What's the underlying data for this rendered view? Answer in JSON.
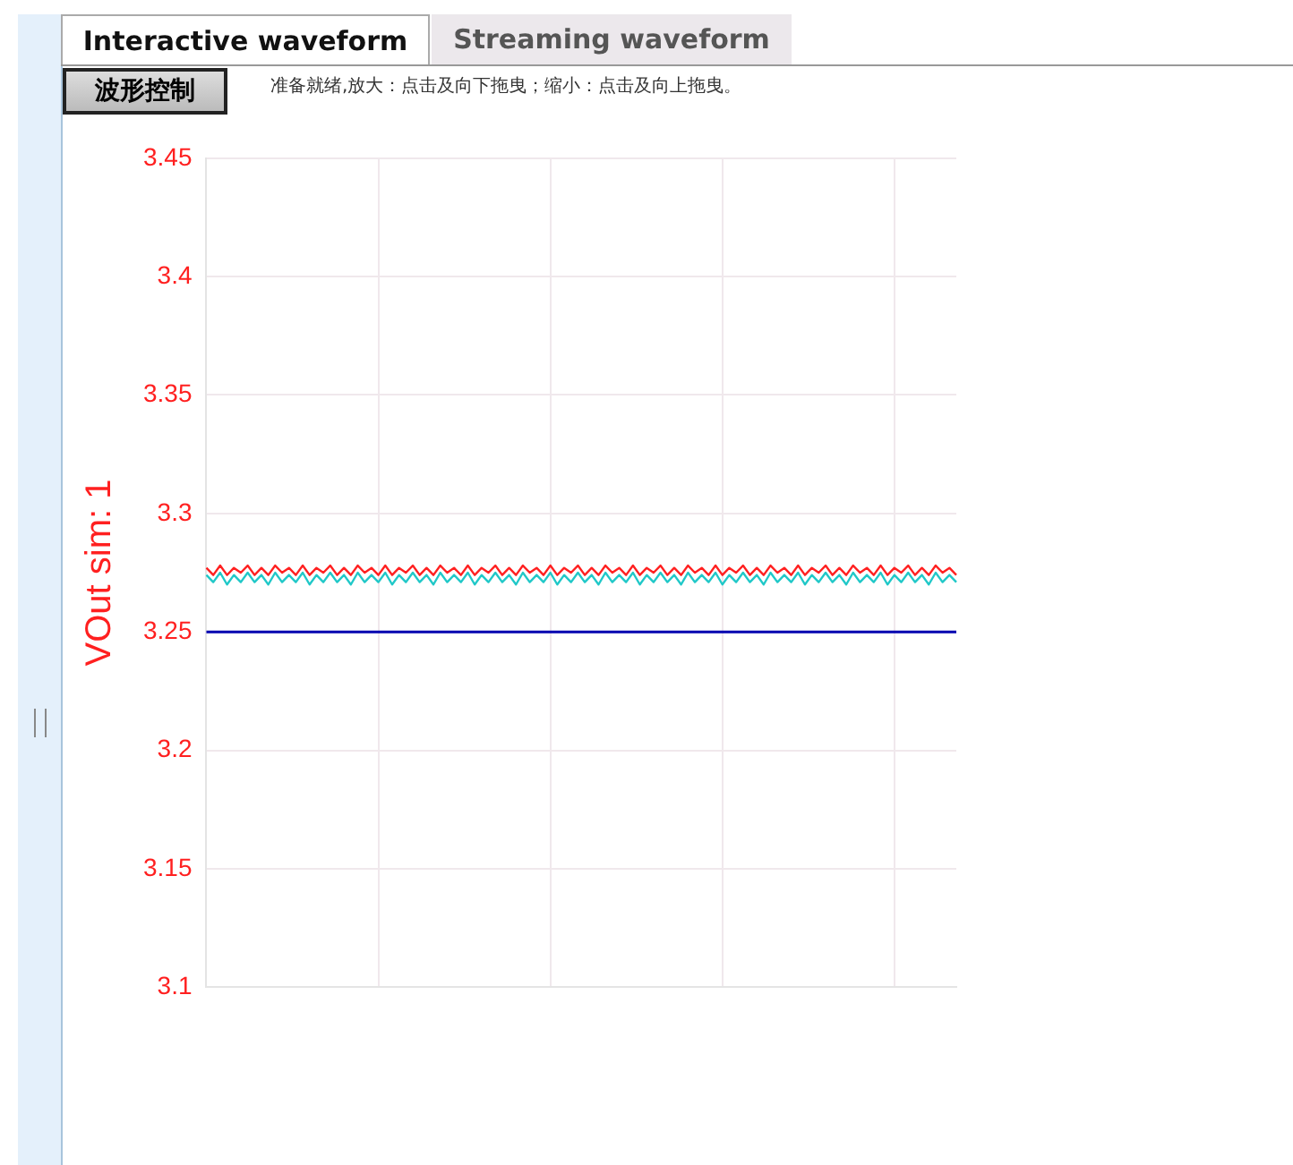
{
  "chart_data": {
    "type": "line",
    "annotations": [
      "Interactive waveform",
      "Streaming waveform",
      "波形控制",
      "准备就绪,放大：点击及向下拖曳；缩小：点击及向上拖曳。"
    ],
    "ylabel": "VOut sim: 1",
    "categories": [
      null,
      null,
      null,
      null,
      null,
      null,
      null,
      null,
      null,
      null,
      null,
      null,
      null,
      null,
      null,
      null,
      null,
      null,
      null,
      null,
      null,
      null,
      null,
      null,
      null,
      null,
      null,
      null,
      null,
      null,
      null,
      null,
      null,
      null,
      null,
      null,
      null,
      null,
      null,
      null,
      null,
      null,
      null,
      null,
      null,
      null,
      null,
      null,
      null,
      null,
      null,
      null,
      null,
      null,
      null,
      null,
      null,
      null,
      null,
      null,
      null,
      null,
      null,
      null,
      null,
      null,
      null,
      null,
      null,
      null,
      null,
      null,
      null,
      null,
      null,
      null,
      null,
      null,
      null,
      null,
      null,
      null,
      null,
      null,
      null,
      null,
      null,
      null,
      null,
      null,
      null,
      null,
      null,
      null,
      null,
      null,
      null,
      null,
      null,
      null,
      null,
      null,
      null,
      null,
      null,
      null,
      null,
      null,
      null,
      null
    ],
    "series": [
      {
        "color": "#ff2020",
        "values": [
          3.277,
          3.274,
          3.278,
          3.274,
          3.277,
          3.275,
          3.278,
          3.274,
          3.277,
          3.274,
          3.278,
          3.275,
          3.277,
          3.274,
          3.278,
          3.274,
          3.277,
          3.275,
          3.278,
          3.274,
          3.277,
          3.274,
          3.278,
          3.275,
          3.277,
          3.274,
          3.278,
          3.274,
          3.277,
          3.275,
          3.278,
          3.274,
          3.277,
          3.274,
          3.278,
          3.275,
          3.277,
          3.274,
          3.278,
          3.274,
          3.277,
          3.275,
          3.278,
          3.274,
          3.277,
          3.274,
          3.278,
          3.275,
          3.277,
          3.274,
          3.278,
          3.274,
          3.277,
          3.275,
          3.278,
          3.274,
          3.277,
          3.274,
          3.278,
          3.275,
          3.277,
          3.274,
          3.278,
          3.274,
          3.277,
          3.275,
          3.278,
          3.274,
          3.277,
          3.274,
          3.278,
          3.275,
          3.277,
          3.274,
          3.278,
          3.274,
          3.277,
          3.275,
          3.278,
          3.274,
          3.277,
          3.274,
          3.278,
          3.275,
          3.277,
          3.274,
          3.278,
          3.274,
          3.277,
          3.275,
          3.278,
          3.274,
          3.277,
          3.274,
          3.278,
          3.275,
          3.277,
          3.274,
          3.278,
          3.274,
          3.277,
          3.275,
          3.278,
          3.274,
          3.277,
          3.274,
          3.278,
          3.275,
          3.277,
          3.274
        ]
      },
      {
        "color": "#20c8c8",
        "values": [
          3.274,
          3.271,
          3.275,
          3.27,
          3.274,
          3.271,
          3.275,
          3.271,
          3.274,
          3.27,
          3.275,
          3.271,
          3.274,
          3.271,
          3.275,
          3.27,
          3.274,
          3.271,
          3.275,
          3.271,
          3.274,
          3.27,
          3.275,
          3.271,
          3.274,
          3.271,
          3.275,
          3.27,
          3.274,
          3.271,
          3.275,
          3.271,
          3.274,
          3.27,
          3.275,
          3.271,
          3.274,
          3.271,
          3.275,
          3.27,
          3.274,
          3.271,
          3.275,
          3.271,
          3.274,
          3.27,
          3.275,
          3.271,
          3.274,
          3.271,
          3.275,
          3.27,
          3.274,
          3.271,
          3.275,
          3.271,
          3.274,
          3.27,
          3.275,
          3.271,
          3.274,
          3.271,
          3.275,
          3.27,
          3.274,
          3.271,
          3.275,
          3.271,
          3.274,
          3.27,
          3.275,
          3.271,
          3.274,
          3.271,
          3.275,
          3.27,
          3.274,
          3.271,
          3.275,
          3.271,
          3.274,
          3.27,
          3.275,
          3.271,
          3.274,
          3.271,
          3.275,
          3.27,
          3.274,
          3.271,
          3.275,
          3.271,
          3.274,
          3.27,
          3.275,
          3.271,
          3.274,
          3.271,
          3.275,
          3.27,
          3.274,
          3.271,
          3.275,
          3.271,
          3.274,
          3.27,
          3.275,
          3.271,
          3.274,
          3.271
        ]
      }
    ],
    "ref_lines": [
      {
        "axis": "y",
        "value": 3.25,
        "color": "#0000b0"
      }
    ],
    "ylim": [
      3.1,
      3.45
    ],
    "yticks": [
      3.1,
      3.15,
      3.2,
      3.25,
      3.3,
      3.35,
      3.4,
      3.45
    ],
    "grid": true,
    "marker": "none",
    "line_style": "solid",
    "legend": false
  }
}
